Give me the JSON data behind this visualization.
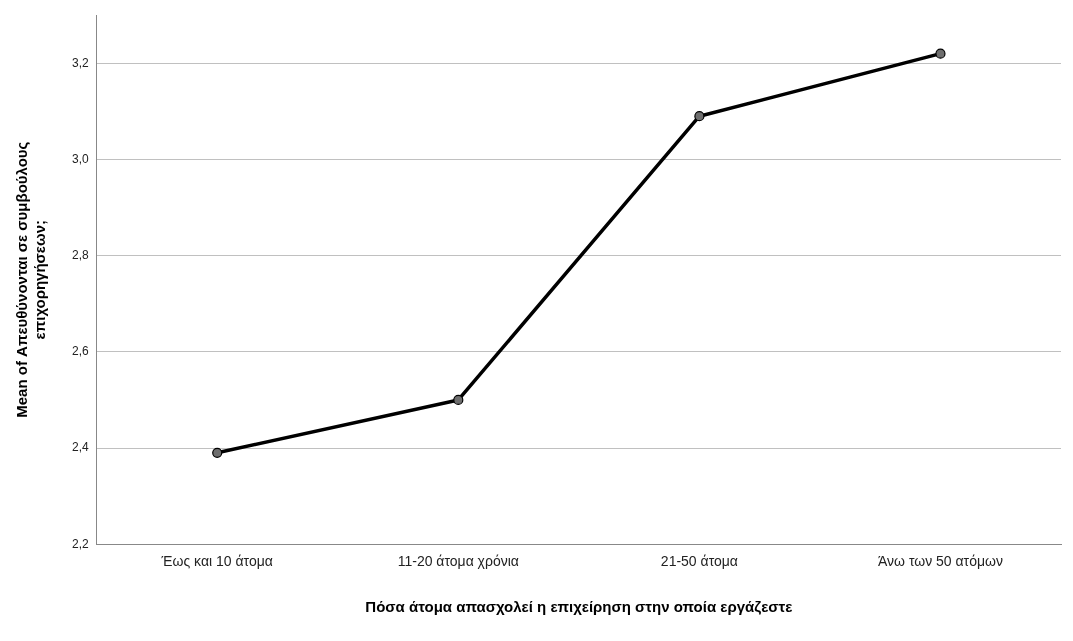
{
  "chart_data": {
    "type": "line",
    "xlabel": "Πόσα άτομα απασχολεί η επιχείρηση στην οποία εργάζεστε",
    "ylabel": "Mean of Απευθύνονται σε συμβούλους\nεπιχορηγήσεων;",
    "categories": [
      "Έως και 10 άτομα",
      "11-20 άτομα χρόνια",
      "21-50 άτομα",
      "Άνω των 50 ατόμων"
    ],
    "series": [
      {
        "color": "#000000",
        "values": [
          2.39,
          2.5,
          3.09,
          3.22
        ]
      }
    ],
    "ylim": [
      2.2,
      3.3
    ],
    "yticks": [
      {
        "value": 2.2,
        "label": "2,2"
      },
      {
        "value": 2.4,
        "label": "2,4"
      },
      {
        "value": 2.6,
        "label": "2,6"
      },
      {
        "value": 2.8,
        "label": "2,8"
      },
      {
        "value": 3.0,
        "label": "3,0"
      },
      {
        "value": 3.2,
        "label": "3,2"
      }
    ],
    "grid": "y",
    "legend": false,
    "marker": "circle",
    "line_style": "solid"
  }
}
